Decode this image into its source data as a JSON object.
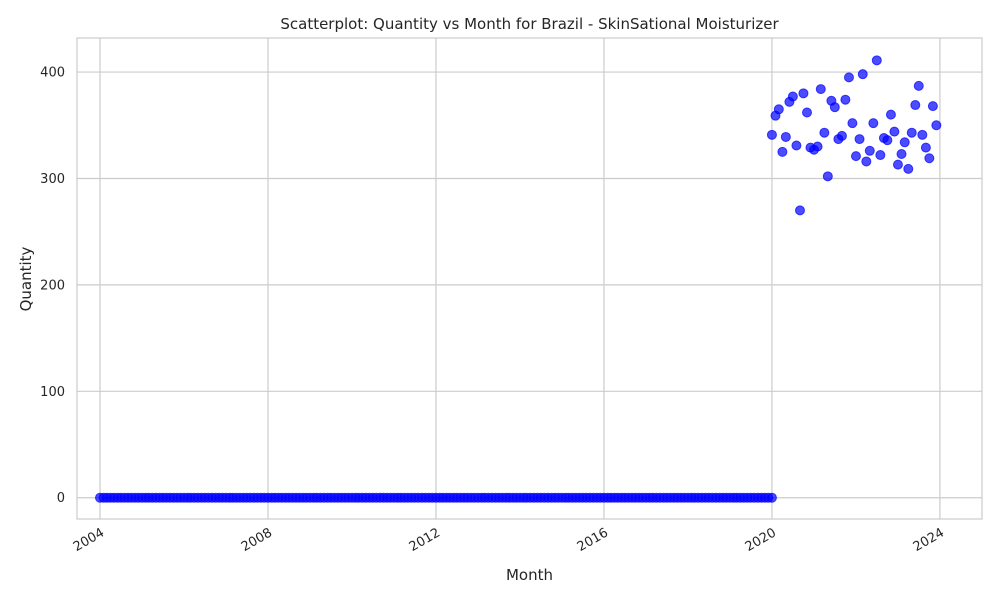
{
  "chart_data": {
    "type": "scatter",
    "title": "Scatterplot: Quantity vs Month for Brazil - SkinSational Moisturizer",
    "xlabel": "Month",
    "ylabel": "Quantity",
    "x_ticks": [
      "2004",
      "2008",
      "2012",
      "2016",
      "2020",
      "2024"
    ],
    "y_ticks": [
      0,
      100,
      200,
      300,
      400
    ],
    "xlim": [
      "2003-06-15",
      "2025-01-01"
    ],
    "ylim": [
      -20,
      432
    ],
    "grid": true,
    "legend": "none",
    "marker_color": "#0000ff",
    "marker_alpha": 0.7,
    "zero_period": {
      "start": "2004-01",
      "end": "2020-01",
      "value": 0
    },
    "series": [
      {
        "x": [
          "2020-01",
          "2020-02",
          "2020-03",
          "2020-04",
          "2020-05",
          "2020-06",
          "2020-07",
          "2020-08",
          "2020-09",
          "2020-10",
          "2020-11",
          "2020-12",
          "2021-01",
          "2021-02",
          "2021-03",
          "2021-04",
          "2021-05",
          "2021-06",
          "2021-07",
          "2021-08",
          "2021-09",
          "2021-10",
          "2021-11",
          "2021-12",
          "2022-01",
          "2022-02",
          "2022-03",
          "2022-04",
          "2022-05",
          "2022-06",
          "2022-07",
          "2022-08",
          "2022-09",
          "2022-10",
          "2022-11",
          "2022-12",
          "2023-01",
          "2023-02",
          "2023-03",
          "2023-04",
          "2023-05",
          "2023-06",
          "2023-07",
          "2023-08",
          "2023-09",
          "2023-10",
          "2023-11",
          "2023-12"
        ],
        "y": [
          341,
          359,
          365,
          325,
          339,
          372,
          377,
          331,
          270,
          380,
          362,
          329,
          327,
          330,
          384,
          343,
          302,
          373,
          367,
          337,
          340,
          374,
          395,
          352,
          321,
          337,
          398,
          316,
          326,
          352,
          411,
          322,
          338,
          336,
          360,
          344,
          313,
          323,
          334,
          309,
          343,
          369,
          387,
          341,
          329,
          319,
          368,
          350
        ]
      }
    ]
  }
}
